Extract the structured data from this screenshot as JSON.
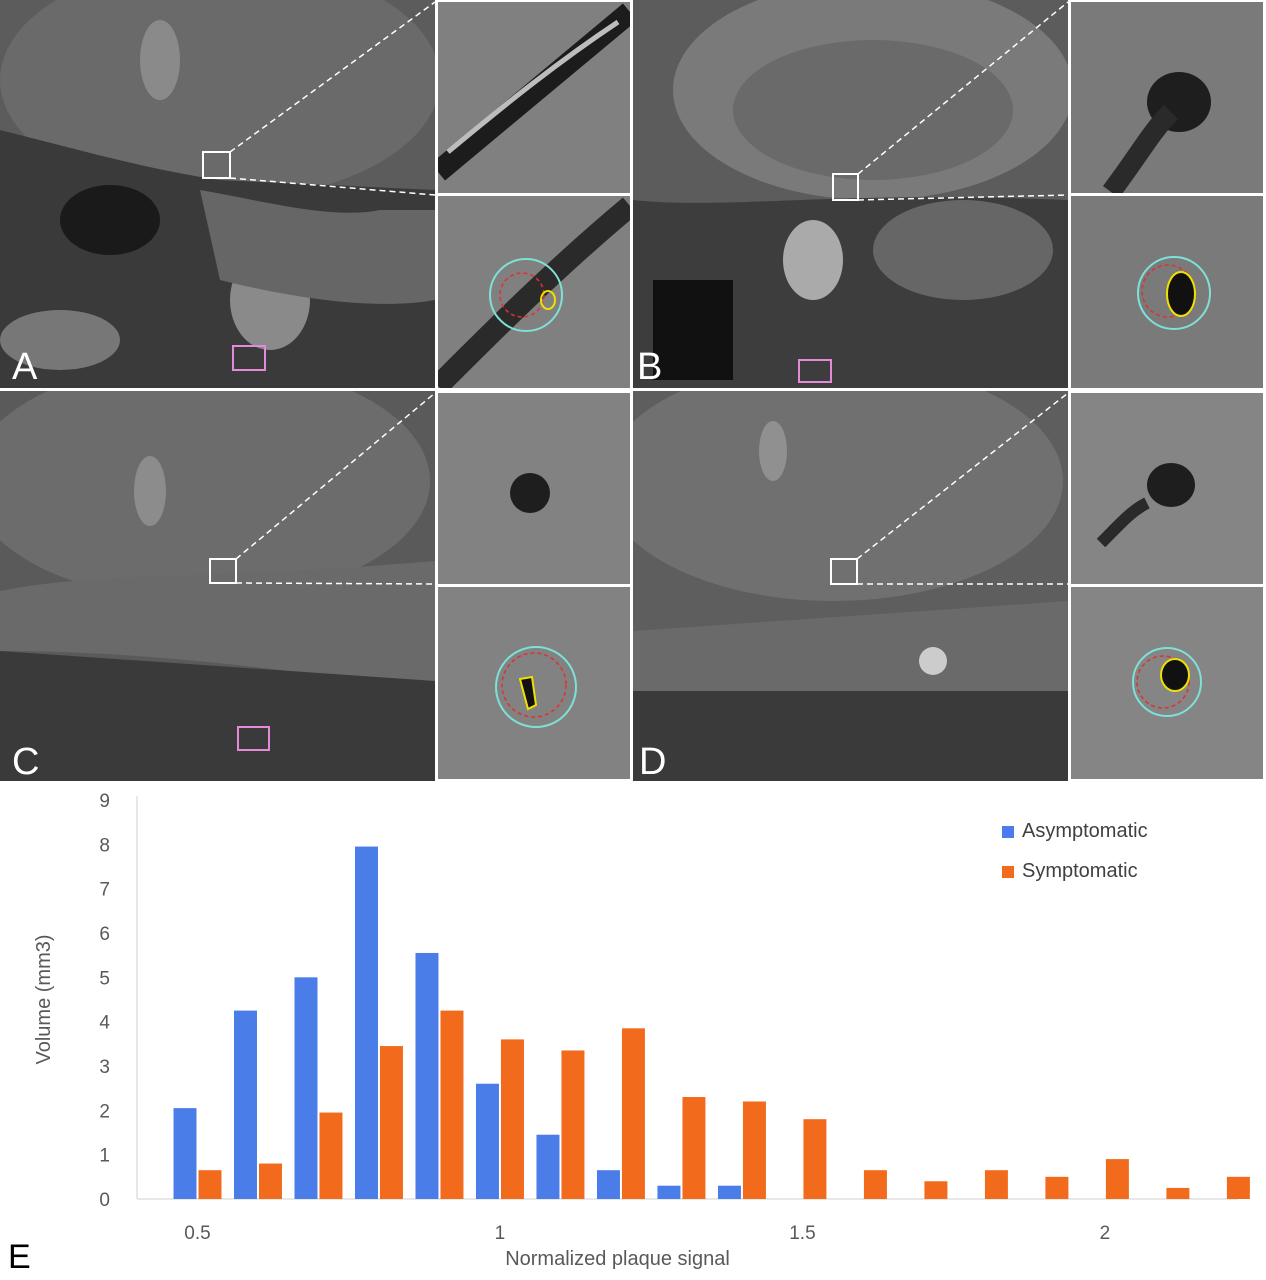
{
  "panels": [
    {
      "label": "A"
    },
    {
      "label": "B"
    },
    {
      "label": "C"
    },
    {
      "label": "D"
    }
  ],
  "chart_panel_label": "E",
  "colors": {
    "asymptomatic": "#4a7de8",
    "symptomatic": "#f26b1d",
    "vessel_wall": "#7fe0d6",
    "lumen": "#e03030",
    "plaque": "#f0e000",
    "reference_box": "#e58ad8"
  },
  "chart_data": {
    "type": "bar",
    "xlabel": "Normalized plaque signal",
    "ylabel": "Volume (mm3)",
    "ylim": [
      0,
      9
    ],
    "yticks": [
      "0",
      "1",
      "2",
      "3",
      "4",
      "5",
      "6",
      "7",
      "8",
      "9"
    ],
    "xticks": [
      {
        "value": 0.5,
        "label": "0.5"
      },
      {
        "value": 1,
        "label": "1"
      },
      {
        "value": 1.5,
        "label": "1.5"
      },
      {
        "value": 2,
        "label": "2"
      }
    ],
    "x": [
      0.5,
      0.6,
      0.7,
      0.8,
      0.9,
      1.0,
      1.1,
      1.2,
      1.3,
      1.4,
      1.5,
      1.6,
      1.7,
      1.8,
      1.9,
      2.0,
      2.1,
      2.2
    ],
    "series": [
      {
        "name": "Asymptomatic",
        "values": [
          2.05,
          4.25,
          5.0,
          7.95,
          5.55,
          2.6,
          1.45,
          0.65,
          0.3,
          0.3,
          0,
          0,
          0,
          0,
          0,
          0,
          0,
          0
        ]
      },
      {
        "name": "Symptomatic",
        "values": [
          0.65,
          0.8,
          1.95,
          3.45,
          4.25,
          3.6,
          3.35,
          3.85,
          2.3,
          2.2,
          1.8,
          0.65,
          0.4,
          0.65,
          0.5,
          0.9,
          0.25,
          0.5
        ]
      }
    ],
    "legend_position": "top-right",
    "grid": false
  }
}
